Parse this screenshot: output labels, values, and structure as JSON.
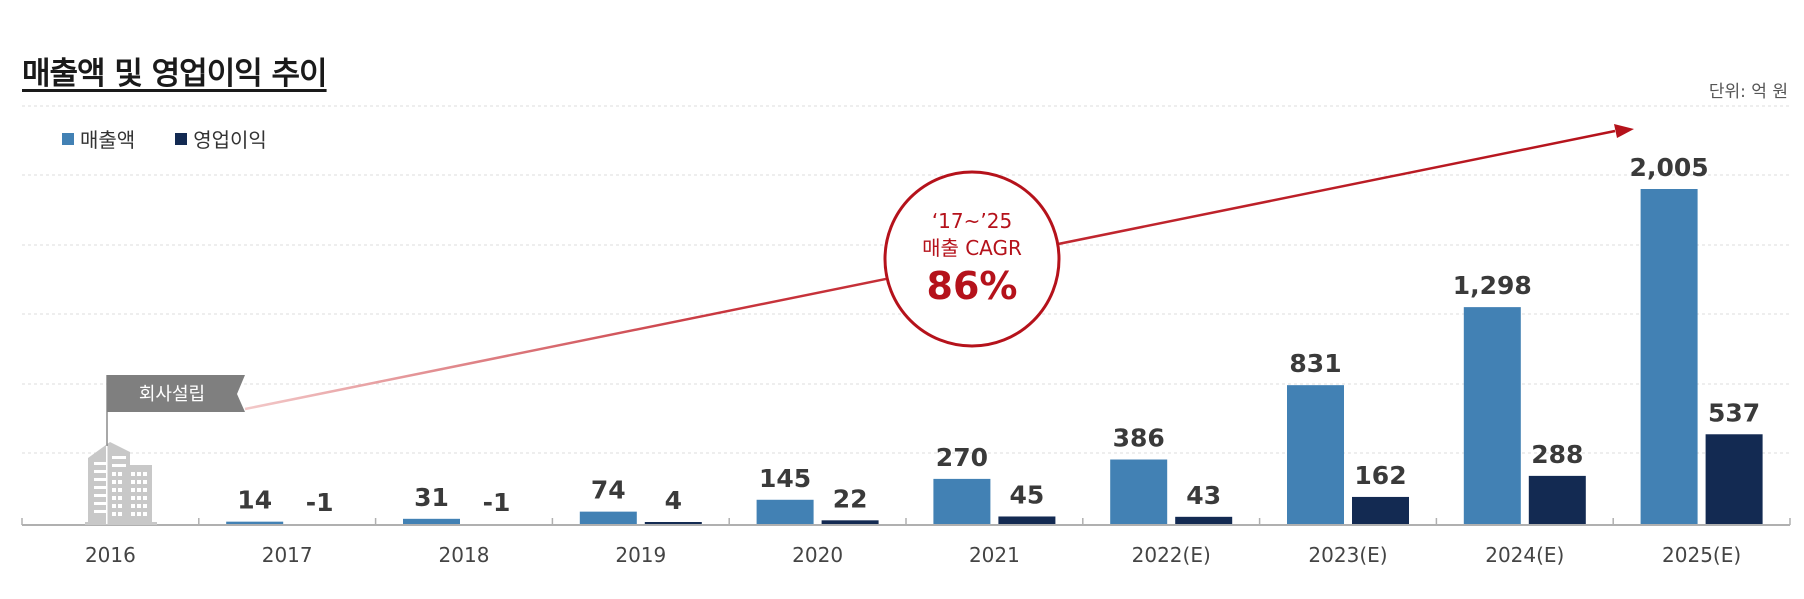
{
  "header": {
    "title": "매출액 및 영업이익 추이",
    "unit": "단위: 억 원"
  },
  "annotations": {
    "flag_label": "회사설립",
    "cagr_period": "‘17~’25",
    "cagr_label": "매출 CAGR",
    "cagr_value": "86%"
  },
  "colors": {
    "revenue": "#4281b4",
    "operating_profit": "#132a52",
    "accent": "#b5121b",
    "axis": "#b0b0b0",
    "grid": "#dddddd",
    "flag": "#7f7f7f",
    "building": "#c8c8c8"
  },
  "icons": {
    "building": "building-icon",
    "flag": "flag-icon",
    "arrow": "arrow-icon"
  },
  "chart_data": {
    "type": "bar",
    "title": "매출액 및 영업이익 추이",
    "xlabel": "",
    "ylabel": "",
    "unit": "단위: 억 원",
    "categories": [
      "2016",
      "2017",
      "2018",
      "2019",
      "2020",
      "2021",
      "2022(E)",
      "2023(E)",
      "2024(E)",
      "2025(E)"
    ],
    "series": [
      {
        "name": "매출액",
        "values": [
          null,
          14,
          31,
          74,
          145,
          270,
          386,
          831,
          1298,
          2005
        ],
        "labels": [
          "",
          "14",
          "31",
          "74",
          "145",
          "270",
          "386",
          "831",
          "1,298",
          "2,005"
        ]
      },
      {
        "name": "영업이익",
        "values": [
          null,
          -1,
          -1,
          4,
          22,
          45,
          43,
          162,
          288,
          537
        ],
        "labels": [
          "",
          "-1",
          "-1",
          "4",
          "22",
          "45",
          "43",
          "162",
          "288",
          "537"
        ]
      }
    ],
    "ylim": [
      0,
      2005
    ],
    "grid": true,
    "legend": "top-left"
  }
}
